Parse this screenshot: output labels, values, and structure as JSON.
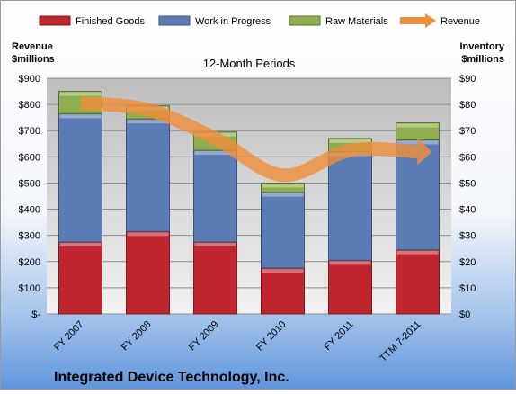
{
  "chart_data": {
    "type": "bar",
    "title": "12-Month Periods",
    "company": "Integrated Device Technology, Inc.",
    "left_axis": {
      "label_line1": "Revenue",
      "label_line2": "$millions",
      "ylim": [
        0,
        900
      ],
      "ticks": [
        "$-",
        "$100",
        "$200",
        "$300",
        "$400",
        "$500",
        "$600",
        "$700",
        "$800",
        "$900"
      ],
      "tick_values": [
        0,
        100,
        200,
        300,
        400,
        500,
        600,
        700,
        800,
        900
      ]
    },
    "right_axis": {
      "label_line1": "Inventory",
      "label_line2": "$millions",
      "ylim": [
        0,
        90
      ],
      "ticks": [
        "$0",
        "$10",
        "$20",
        "$30",
        "$40",
        "$50",
        "$60",
        "$70",
        "$80",
        "$90"
      ],
      "tick_values": [
        0,
        10,
        20,
        30,
        40,
        50,
        60,
        70,
        80,
        90
      ]
    },
    "categories": [
      "FY 2007",
      "FY 2008",
      "FY 2009",
      "FY 2010",
      "FY 2011",
      "TTM 7-2011"
    ],
    "series": [
      {
        "name": "Finished Goods",
        "type": "stacked-bar",
        "axis": "right",
        "color": "#c0262d",
        "values": [
          27.5,
          31.5,
          27.5,
          17.5,
          20.5,
          24.5
        ]
      },
      {
        "name": "Work in Progress",
        "type": "stacked-bar",
        "axis": "right",
        "color": "#5a7db5",
        "values": [
          49,
          43,
          35,
          29,
          41.5,
          42
        ]
      },
      {
        "name": "Raw Materials",
        "type": "stacked-bar",
        "axis": "right",
        "color": "#8fae4f",
        "values": [
          8.5,
          5,
          7,
          3.5,
          5,
          6.5
        ]
      },
      {
        "name": "Revenue",
        "type": "line",
        "axis": "left",
        "color": "#ee8f3c",
        "values": [
          805,
          780,
          670,
          530,
          625,
          620
        ]
      }
    ],
    "grid": true,
    "legend_position": "top"
  }
}
